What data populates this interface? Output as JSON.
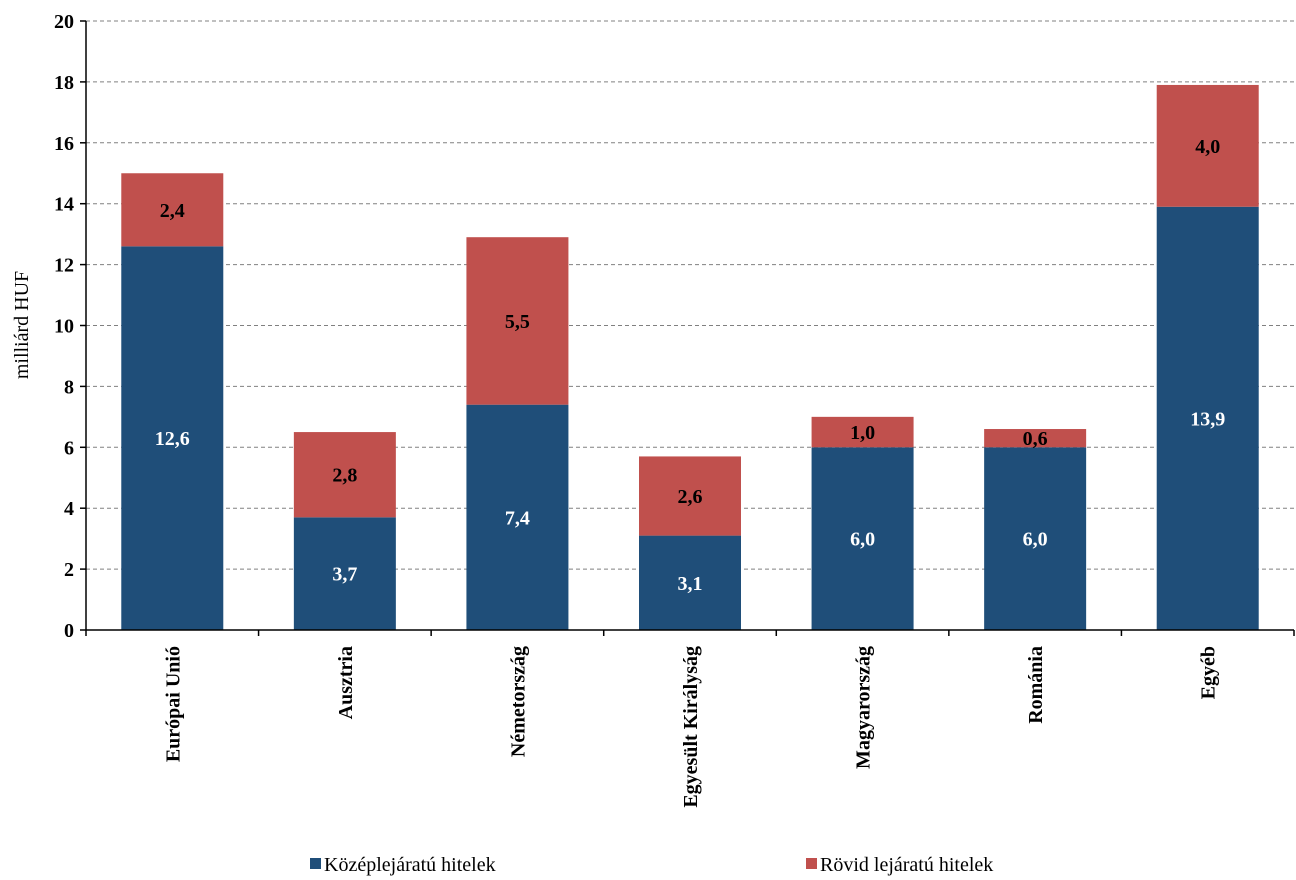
{
  "chart_data": {
    "type": "bar",
    "stacked": true,
    "title": "",
    "xlabel": "",
    "ylabel": "milliárd HUF",
    "ylim": [
      0,
      20
    ],
    "yticks": [
      0,
      2,
      4,
      6,
      8,
      10,
      12,
      14,
      16,
      18,
      20
    ],
    "grid": true,
    "legend_position": "bottom",
    "categories": [
      "Európai Unió",
      "Ausztria",
      "Németország",
      "Egyesült Királyság",
      "Magyarország",
      "Románia",
      "Egyéb"
    ],
    "series": [
      {
        "name": "Középlejáratú hitelek",
        "color": "#1F4E79",
        "values": [
          12.6,
          3.7,
          7.4,
          3.1,
          6.0,
          6.0,
          13.9
        ],
        "labels": [
          "12,6",
          "3,7",
          "7,4",
          "3,1",
          "6,0",
          "6,0",
          "13,9"
        ]
      },
      {
        "name": "Rövid lejáratú hitelek",
        "color": "#C0504D",
        "values": [
          2.4,
          2.8,
          5.5,
          2.6,
          1.0,
          0.6,
          4.0
        ],
        "labels": [
          "2,4",
          "2,8",
          "5,5",
          "2,6",
          "1,0",
          "0,6",
          "4,0"
        ]
      }
    ]
  }
}
